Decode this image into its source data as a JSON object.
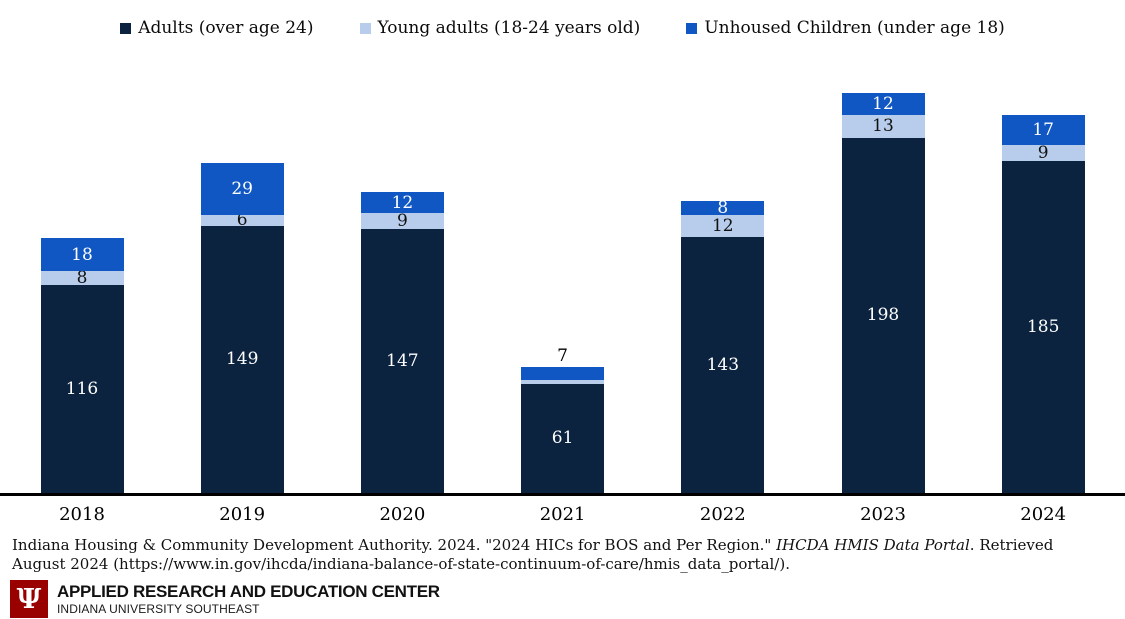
{
  "legend": [
    {
      "label": "Adults (over age 24)",
      "color": "#0C2340"
    },
    {
      "label": "Young adults (18-24 years old)",
      "color": "#B8CDEC"
    },
    {
      "label": "Unhoused Children (under age 18)",
      "color": "#1057C4"
    }
  ],
  "chart_data": {
    "type": "bar",
    "stacked": true,
    "categories": [
      "2018",
      "2019",
      "2020",
      "2021",
      "2022",
      "2023",
      "2024"
    ],
    "series": [
      {
        "name": "Adults (over age 24)",
        "color": "#0C2340",
        "label_color": "#FFFFFF",
        "values": [
          116,
          149,
          147,
          61,
          143,
          198,
          185
        ]
      },
      {
        "name": "Young adults (18-24 years old)",
        "color": "#B8CDEC",
        "label_color": "#111111",
        "values": [
          8,
          6,
          9,
          2,
          12,
          13,
          9
        ]
      },
      {
        "name": "Unhoused Children (under age 18)",
        "color": "#1057C4",
        "label_color": "#FFFFFF",
        "values": [
          18,
          29,
          12,
          7,
          8,
          12,
          17
        ]
      }
    ],
    "totals": [
      142,
      184,
      168,
      70,
      163,
      223,
      211
    ],
    "title": "",
    "xlabel": "",
    "ylabel": "",
    "ylim": [
      0,
      265
    ],
    "grid": false,
    "legend_position": "top",
    "data_labels": true
  },
  "source": {
    "line1_pre": "Indiana Housing & Community Development Authority. 2024. \"2024 HICs for BOS and Per Region.\" ",
    "line1_italic": "IHCDA HMIS Data Portal",
    "line1_post": ". Retrieved",
    "line2": "August 2024 (https://www.in.gov/ihcda/indiana-balance-of-state-continuum-of-care/hmis_data_portal/)."
  },
  "footer": {
    "logo_glyph": "Ψ",
    "org": "APPLIED RESEARCH AND EDUCATION CENTER",
    "sub": "INDIANA UNIVERSITY SOUTHEAST"
  }
}
